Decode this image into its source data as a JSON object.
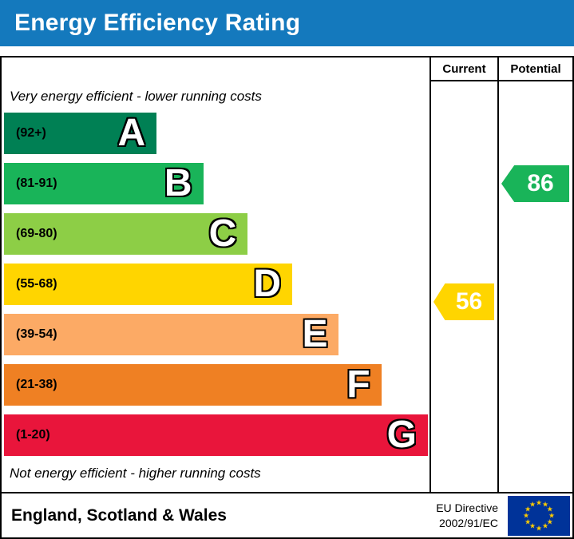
{
  "header": {
    "title": "Energy Efficiency Rating"
  },
  "columns": {
    "current_label": "Current",
    "potential_label": "Potential"
  },
  "captions": {
    "top": "Very energy efficient - lower running costs",
    "bottom": "Not energy efficient - higher running costs"
  },
  "bands": [
    {
      "letter": "A",
      "range_label": "(92+)",
      "min": 92,
      "max": 100,
      "color": "#008054",
      "width_pct": 36
    },
    {
      "letter": "B",
      "range_label": "(81-91)",
      "min": 81,
      "max": 91,
      "color": "#19b459",
      "width_pct": 47
    },
    {
      "letter": "C",
      "range_label": "(69-80)",
      "min": 69,
      "max": 80,
      "color": "#8dce46",
      "width_pct": 57.5
    },
    {
      "letter": "D",
      "range_label": "(55-68)",
      "min": 55,
      "max": 68,
      "color": "#ffd500",
      "width_pct": 68
    },
    {
      "letter": "E",
      "range_label": "(39-54)",
      "min": 39,
      "max": 54,
      "color": "#fcaa65",
      "width_pct": 79
    },
    {
      "letter": "F",
      "range_label": "(21-38)",
      "min": 21,
      "max": 38,
      "color": "#ef8023",
      "width_pct": 89
    },
    {
      "letter": "G",
      "range_label": "(1-20)",
      "min": 1,
      "max": 20,
      "color": "#e9153b",
      "width_pct": 100
    }
  ],
  "ratings": {
    "current": {
      "value": 56,
      "band": "D",
      "color": "#ffd500"
    },
    "potential": {
      "value": 86,
      "band": "B",
      "color": "#19b459"
    }
  },
  "footer": {
    "region": "England, Scotland & Wales",
    "directive_line1": "EU Directive",
    "directive_line2": "2002/91/EC",
    "flag_star_glyph": "★"
  },
  "colors": {
    "header_bg": "#1479bd",
    "border": "#000000",
    "flag_bg": "#003399",
    "flag_star": "#ffcc00"
  },
  "chart_data": {
    "type": "bar",
    "title": "Energy Efficiency Rating",
    "categories": [
      "A (92+)",
      "B (81-91)",
      "C (69-80)",
      "D (55-68)",
      "E (39-54)",
      "F (21-38)",
      "G (1-20)"
    ],
    "band_colors": [
      "#008054",
      "#19b459",
      "#8dce46",
      "#ffd500",
      "#fcaa65",
      "#ef8023",
      "#e9153b"
    ],
    "series": [
      {
        "name": "Current",
        "value": 56,
        "band": "D"
      },
      {
        "name": "Potential",
        "value": 86,
        "band": "B"
      }
    ],
    "scale_min": 1,
    "scale_max": 100,
    "annotations": [
      "Very energy efficient - lower running costs",
      "Not energy efficient - higher running costs"
    ],
    "region": "England, Scotland & Wales",
    "directive": "EU Directive 2002/91/EC"
  }
}
